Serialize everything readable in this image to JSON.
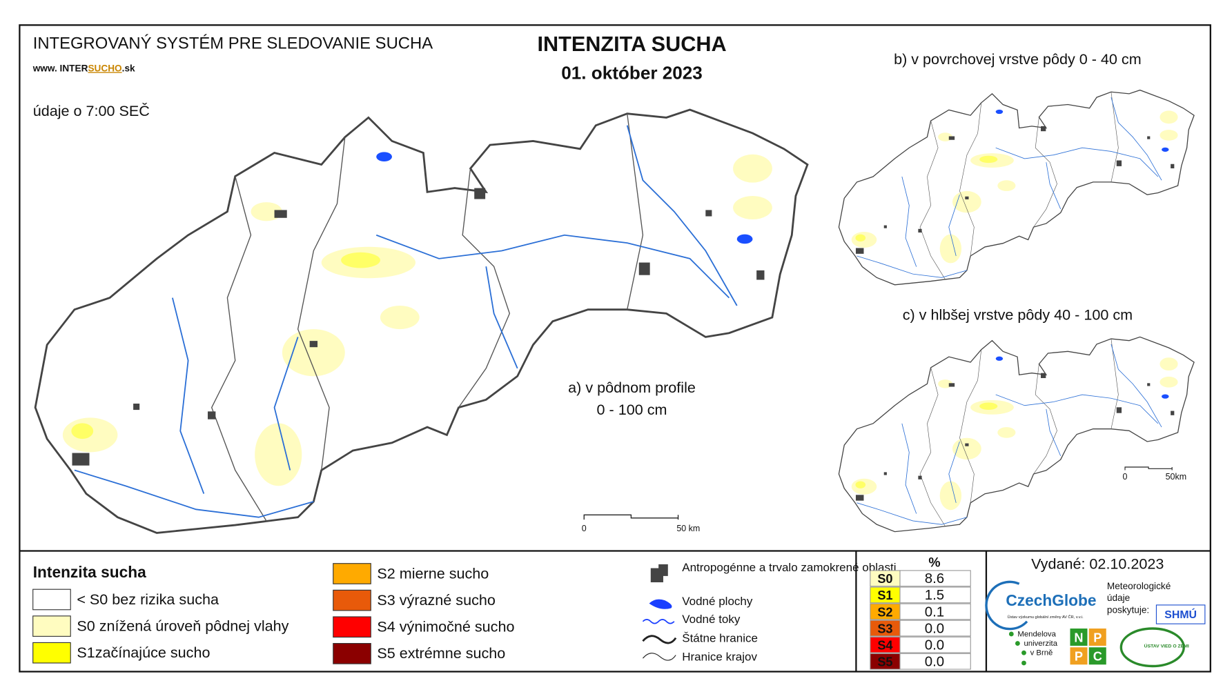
{
  "header": {
    "system": "INTEGROVANÝ SYSTÉM PRE SLEDOVANIE SUCHA",
    "url_prefix": "www. INTER",
    "url_mid": "SUCHO",
    "url_suffix": ".sk",
    "time_note": "údaje o 7:00 SEČ"
  },
  "title": "INTENZITA SUCHA",
  "date": "01. október 2023",
  "maps": {
    "a": [
      "a) v pôdnom profile",
      "0 - 100 cm"
    ],
    "b": "b) v povrchovej vrstve pôdy 0 - 40 cm",
    "c": "c) v hlbšej vrstve pôdy 40 - 100 cm"
  },
  "scales": {
    "a": [
      "0",
      "50 km"
    ],
    "small": [
      "0",
      "50km"
    ]
  },
  "legend": {
    "title": "Intenzita sucha",
    "items": [
      {
        "label": "< S0 bez rizika sucha",
        "color": "#ffffff"
      },
      {
        "label": "S0 znížená úroveň pôdnej vlahy",
        "color": "#fffcc0"
      },
      {
        "label": "S1začínajúce sucho",
        "color": "#ffff00"
      },
      {
        "label": "S2 mierne sucho",
        "color": "#ffaa00"
      },
      {
        "label": "S3 výrazné sucho",
        "color": "#e85a0a"
      },
      {
        "label": "S4 výnimočné sucho",
        "color": "#ff0000"
      },
      {
        "label": "S5 extrémne sucho",
        "color": "#8b0000"
      }
    ]
  },
  "symbols": [
    "Antropogénne a trvalo zamokrené oblasti",
    "Vodné plochy",
    "Vodné toky",
    "Štátne hranice",
    "Hranice krajov"
  ],
  "table": {
    "header": "%",
    "rows": [
      [
        "S0",
        "8.6"
      ],
      [
        "S1",
        "1.5"
      ],
      [
        "S2",
        "0.1"
      ],
      [
        "S3",
        "0.0"
      ],
      [
        "S4",
        "0.0"
      ],
      [
        "S5",
        "0.0"
      ]
    ]
  },
  "issued": "Vydané: 02.10.2023",
  "logos": {
    "czechglobe": "CzechGlobe",
    "czechglobe_sub": "Ústav výzkumu globální změny AV ČR, v.v.i.",
    "meteo": [
      "Meteorologické",
      "údaje",
      "poskytuje:"
    ],
    "shmu": "SHMÚ",
    "mendel": [
      "Mendelova",
      "univerzita",
      "v Brně"
    ],
    "nppc": [
      "N",
      "P",
      "P",
      "C"
    ],
    "uvz": "ÚSTAV VIED O ZEMI"
  }
}
